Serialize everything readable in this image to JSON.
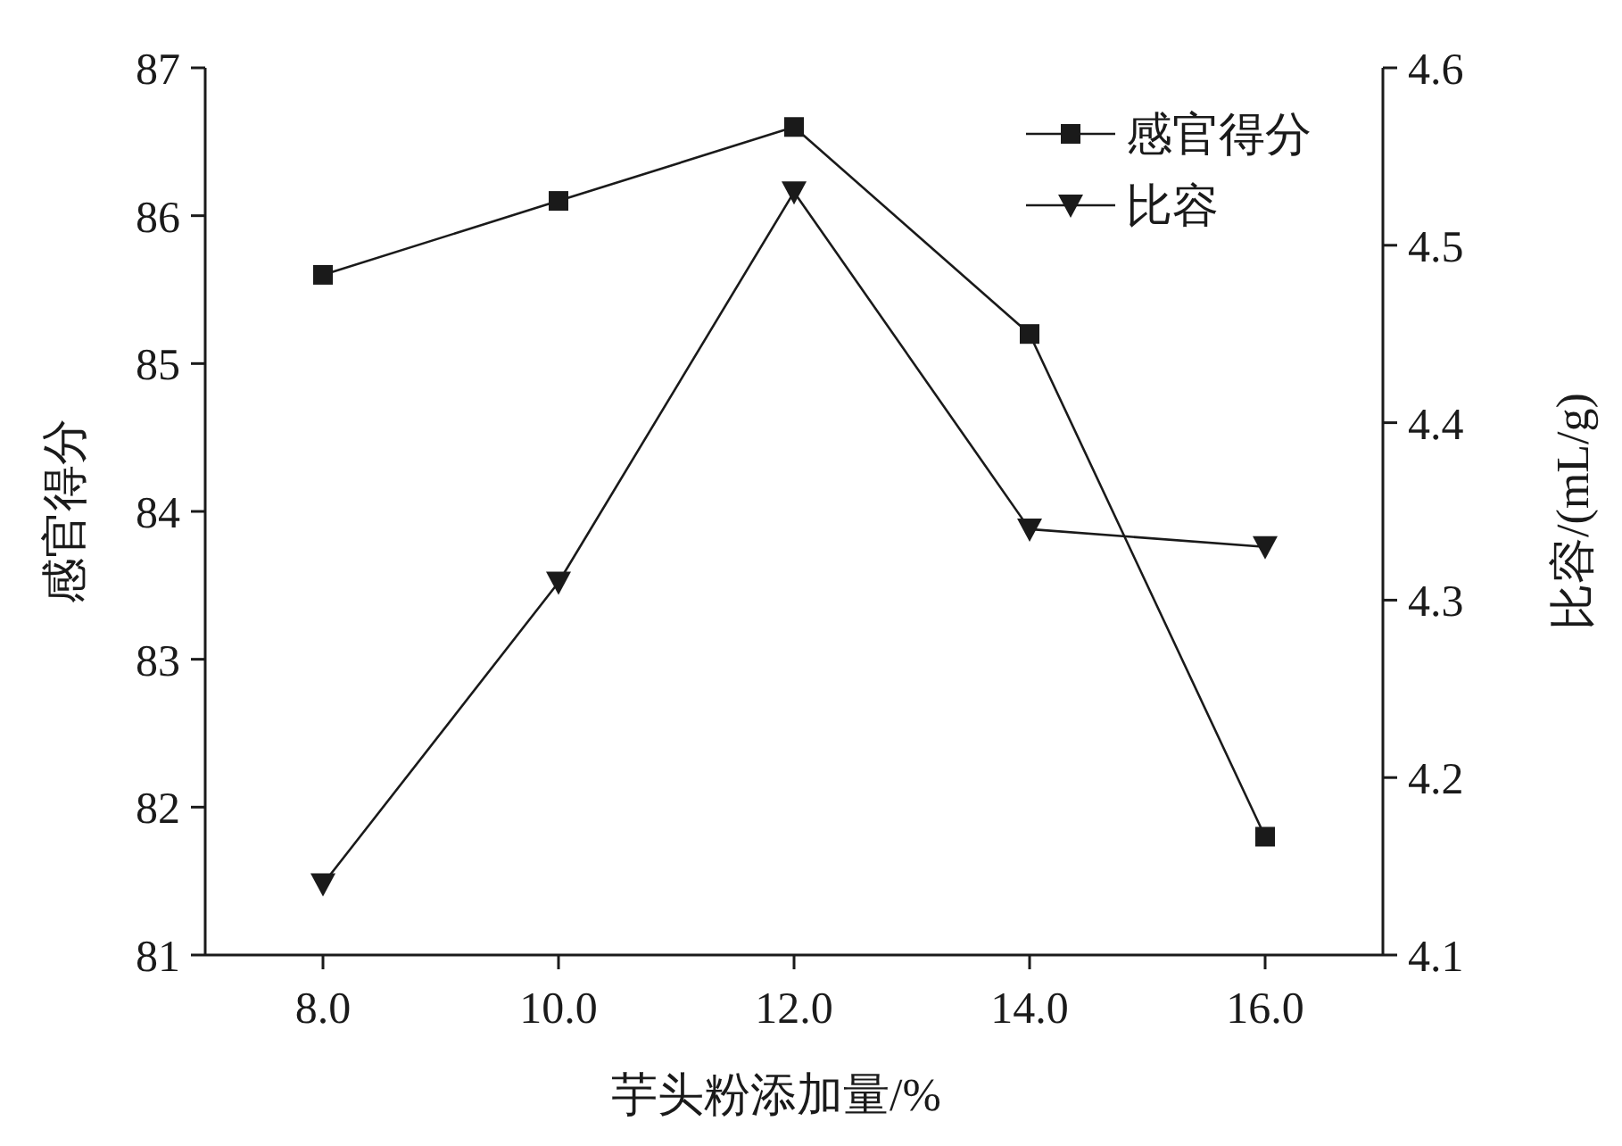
{
  "chart_data": {
    "type": "line",
    "x": [
      8,
      10,
      12,
      14,
      16
    ],
    "xlim": [
      7,
      17
    ],
    "xticks": [
      {
        "value": 8,
        "label": "8.0"
      },
      {
        "value": 10,
        "label": "10.0"
      },
      {
        "value": 12,
        "label": "12.0"
      },
      {
        "value": 14,
        "label": "14.0"
      },
      {
        "value": 16,
        "label": "16.0"
      }
    ],
    "ylim": [
      81,
      87
    ],
    "yticks": [
      81,
      82,
      83,
      84,
      85,
      86,
      87
    ],
    "y2lim": [
      4.1,
      4.6
    ],
    "y2ticks": [
      4.1,
      4.2,
      4.3,
      4.4,
      4.5,
      4.6
    ],
    "xlabel": "芋头粉添加量/%",
    "ylabel": "感官得分",
    "y2label": "比容/(mL/g)",
    "legend": "top right",
    "series": [
      {
        "name": "感官得分",
        "color": "#1a1a1a",
        "marker": "square",
        "values": [
          85.6,
          86.1,
          86.6,
          85.2,
          81.8
        ]
      },
      {
        "name": "比容",
        "color": "#1a1a1a",
        "marker": "triangle",
        "axis": "y2",
        "values": [
          4.14,
          4.31,
          4.53,
          4.34,
          4.33
        ]
      }
    ]
  }
}
